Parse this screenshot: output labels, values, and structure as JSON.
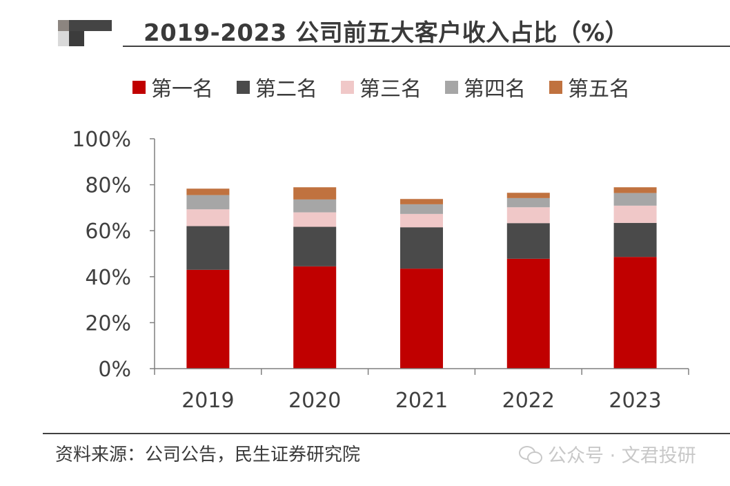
{
  "title": "2019-2023 公司前五大客户收入占比（%）",
  "source": "资料来源：公司公告，民生证券研究院",
  "watermark": "公众号 · 文君投研",
  "colors": {
    "first": "#c00000",
    "second": "#4a4a4a",
    "third": "#f0c8c8",
    "fourth": "#a6a6a6",
    "fifth": "#c0723f"
  },
  "chart_data": {
    "type": "bar",
    "stacked": true,
    "categories": [
      "2019",
      "2020",
      "2021",
      "2022",
      "2023"
    ],
    "series": [
      {
        "name": "第一名",
        "color": "#c00000",
        "values": [
          43.0,
          44.5,
          43.5,
          47.8,
          48.6
        ]
      },
      {
        "name": "第二名",
        "color": "#4a4a4a",
        "values": [
          19.0,
          17.2,
          18.0,
          15.5,
          14.8
        ]
      },
      {
        "name": "第三名",
        "color": "#f0c8c8",
        "values": [
          7.3,
          6.3,
          5.8,
          6.9,
          7.5
        ]
      },
      {
        "name": "第四名",
        "color": "#a6a6a6",
        "values": [
          6.2,
          5.6,
          4.2,
          4.0,
          5.5
        ]
      },
      {
        "name": "第五名",
        "color": "#c0723f",
        "values": [
          2.8,
          5.3,
          2.3,
          2.3,
          2.5
        ]
      }
    ],
    "ylim": [
      0,
      100
    ],
    "yticks": [
      "0%",
      "20%",
      "40%",
      "60%",
      "80%",
      "100%"
    ],
    "grid": false,
    "legend_position": "top"
  }
}
